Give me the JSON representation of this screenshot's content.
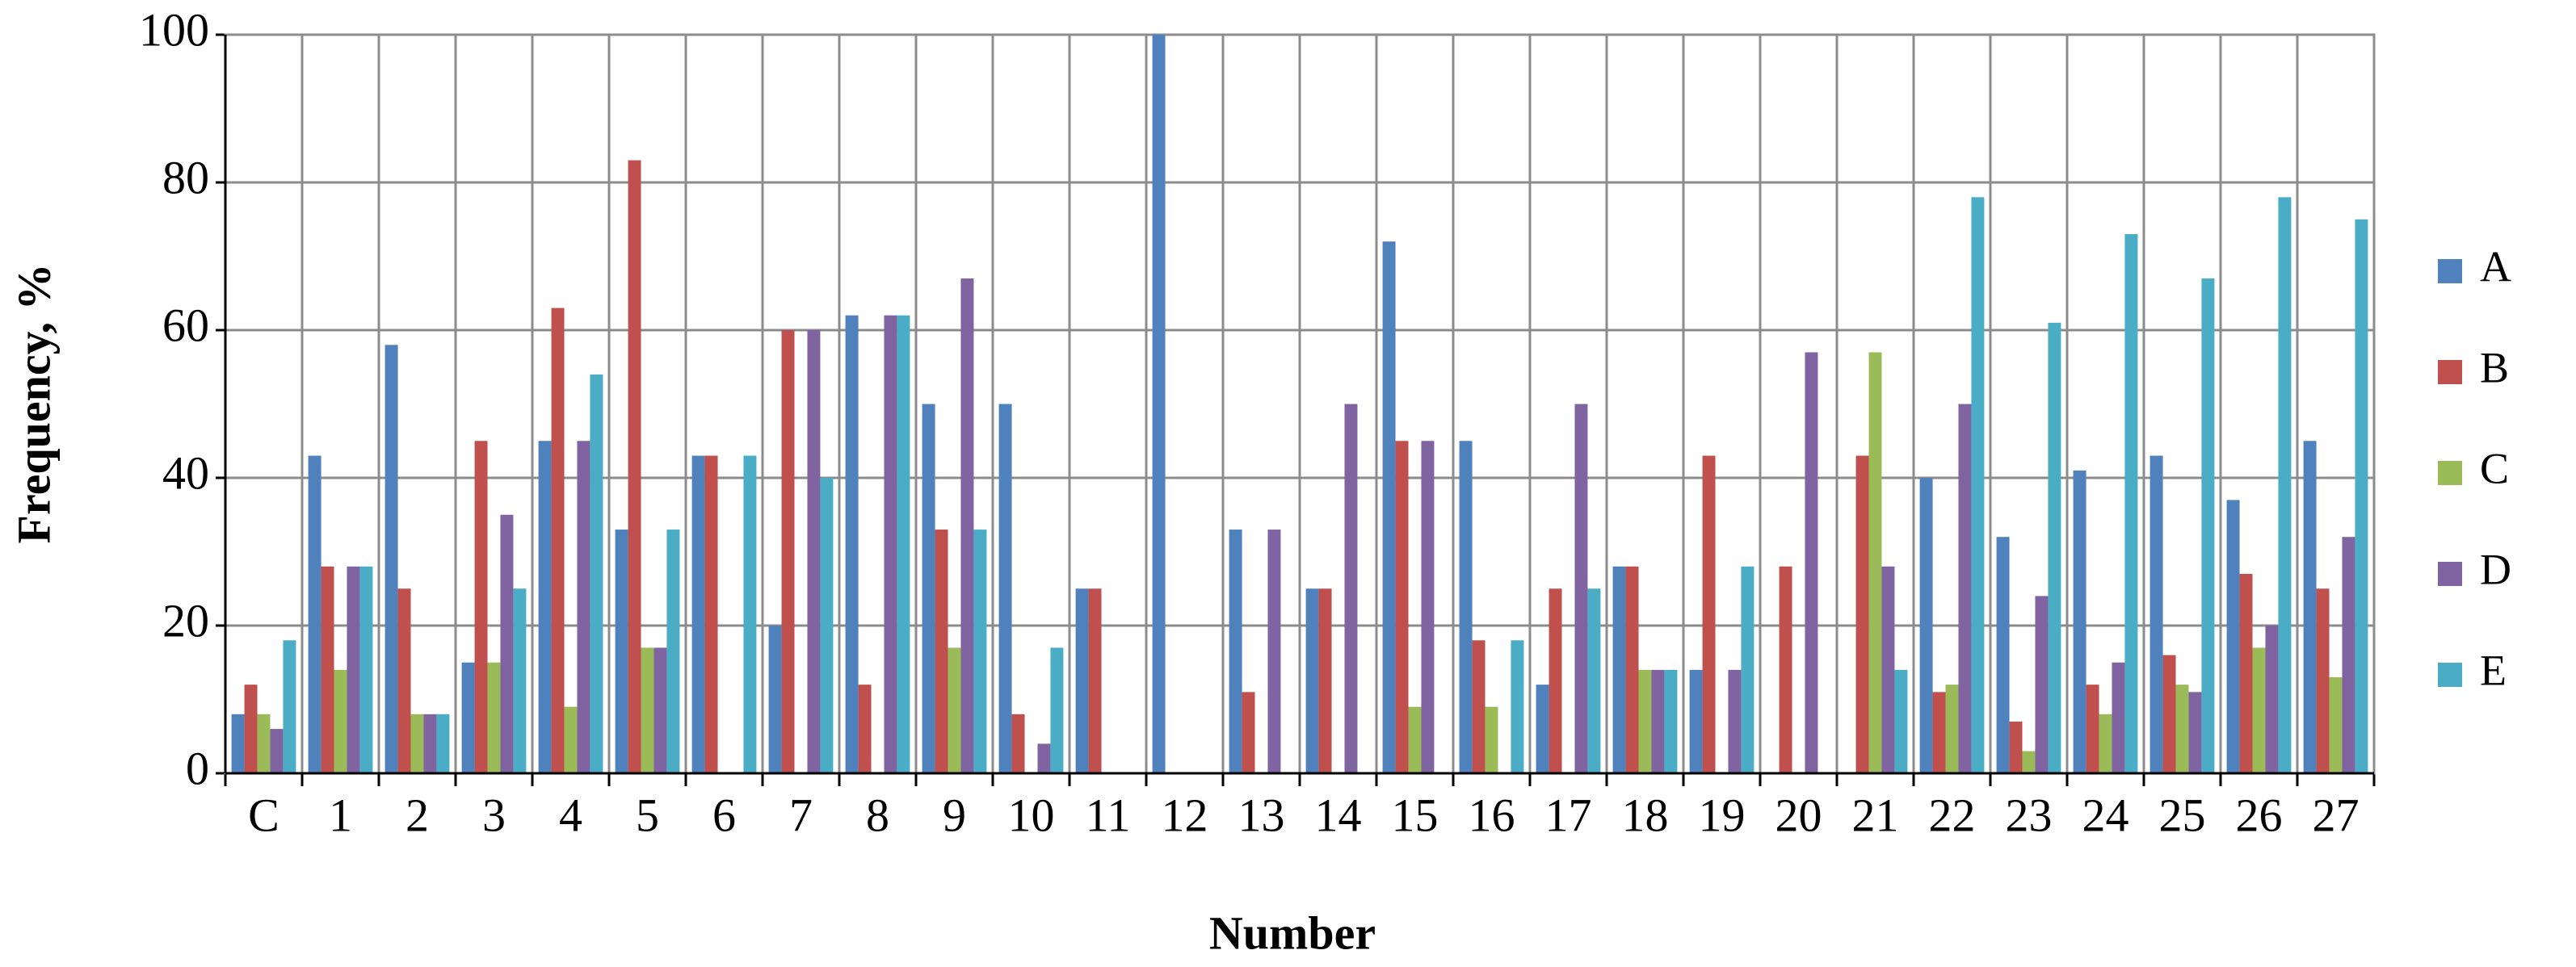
{
  "chart_data": {
    "type": "bar",
    "xlabel": "Number",
    "ylabel": "Frequency,  %",
    "categories": [
      "C",
      "1",
      "2",
      "3",
      "4",
      "5",
      "6",
      "7",
      "8",
      "9",
      "10",
      "11",
      "12",
      "13",
      "14",
      "15",
      "16",
      "17",
      "18",
      "19",
      "20",
      "21",
      "22",
      "23",
      "24",
      "25",
      "26",
      "27"
    ],
    "series": [
      {
        "name": "A",
        "color": "#4f81bd",
        "values": [
          8,
          43,
          58,
          15,
          45,
          33,
          43,
          20,
          62,
          50,
          50,
          25,
          100,
          33,
          25,
          72,
          45,
          12,
          28,
          14,
          0,
          0,
          40,
          32,
          41,
          43,
          37,
          45
        ]
      },
      {
        "name": "B",
        "color": "#c0504d",
        "values": [
          12,
          28,
          25,
          45,
          63,
          83,
          43,
          60,
          12,
          33,
          8,
          25,
          0,
          11,
          25,
          45,
          18,
          25,
          28,
          43,
          28,
          43,
          11,
          7,
          12,
          16,
          27,
          25
        ]
      },
      {
        "name": "C",
        "color": "#9bbb59",
        "values": [
          8,
          14,
          8,
          15,
          9,
          17,
          0,
          0,
          0,
          17,
          0,
          0,
          0,
          0,
          0,
          9,
          9,
          0,
          14,
          0,
          0,
          57,
          12,
          3,
          8,
          12,
          17,
          13
        ]
      },
      {
        "name": "D",
        "color": "#8064a2",
        "values": [
          6,
          28,
          8,
          35,
          45,
          17,
          0,
          60,
          62,
          67,
          4,
          0,
          0,
          33,
          50,
          45,
          0,
          50,
          14,
          14,
          57,
          28,
          50,
          24,
          15,
          11,
          20,
          32
        ]
      },
      {
        "name": "E",
        "color": "#4bacc6",
        "values": [
          18,
          28,
          8,
          25,
          54,
          33,
          43,
          40,
          62,
          33,
          17,
          0,
          0,
          0,
          0,
          0,
          18,
          25,
          14,
          28,
          0,
          14,
          78,
          61,
          73,
          67,
          78,
          75
        ]
      }
    ],
    "ylim": [
      0,
      100
    ],
    "yticks": [
      0,
      20,
      40,
      60,
      80,
      100
    ],
    "grid": true,
    "legend": "right"
  }
}
